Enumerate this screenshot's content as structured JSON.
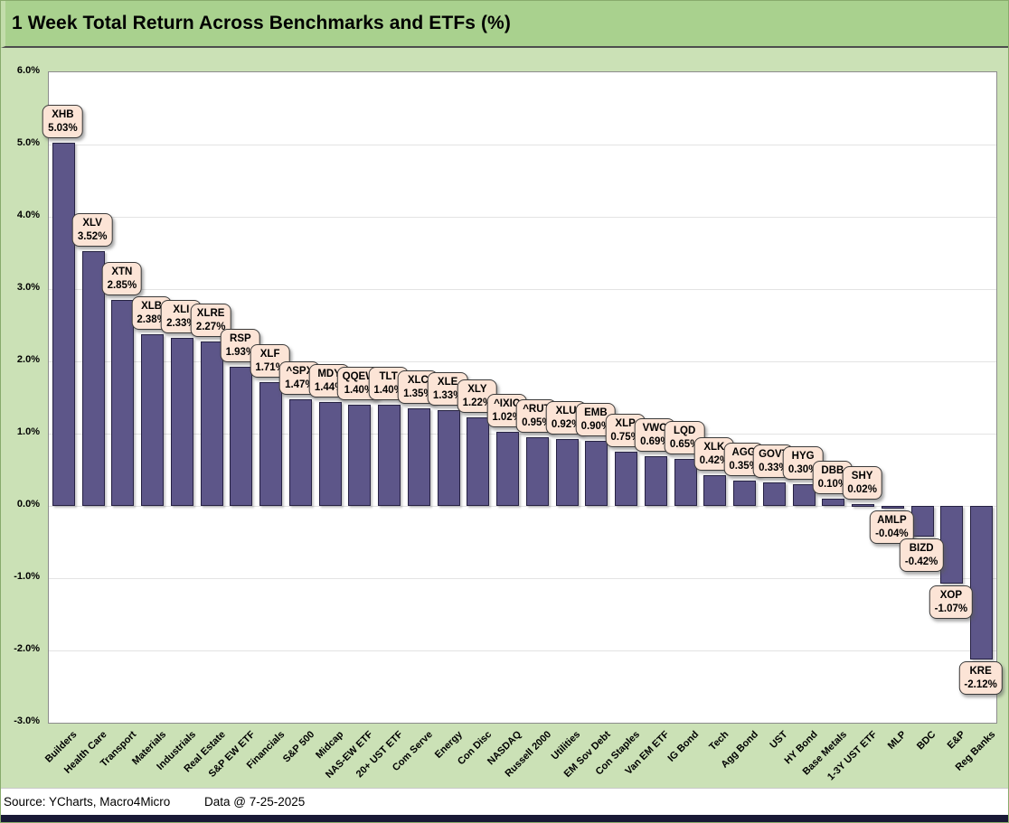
{
  "title": "1 Week Total Return Across Benchmarks and ETFs (%)",
  "source_row": {
    "source": "Source: YCharts, Macro4Micro",
    "data_date": "Data @ 7-25-2025"
  },
  "colors": {
    "title_bg": "#a9d18e",
    "chart_bg": "#cbe1b6",
    "plot_bg": "#ffffff",
    "gridline": "#e3e3e3",
    "plot_border": "#8c8c8c",
    "bar_fill": "#5d5689",
    "bar_border": "#262143",
    "label_box_fill": "#fce4d6",
    "label_box_border": "#3a3a3a",
    "footer_bar": "#191936"
  },
  "chart_data": {
    "type": "bar",
    "title": "1 Week Total Return Across Benchmarks and ETFs (%)",
    "xlabel": "",
    "ylabel": "",
    "ylim": [
      -3.0,
      6.0
    ],
    "ytick_step": 1.0,
    "ytick_labels": [
      "6.0%",
      "5.0%",
      "4.0%",
      "3.0%",
      "2.0%",
      "1.0%",
      "0.0%",
      "-1.0%",
      "-2.0%",
      "-3.0%"
    ],
    "grid": "horizontal",
    "legend_position": "none",
    "categories": [
      "Builders",
      "Health Care",
      "Transport",
      "Materials",
      "Industrials",
      "Real Estate",
      "S&P EW ETF",
      "Financials",
      "S&P 500",
      "Midcap",
      "NAS-EW ETF",
      "20+ UST ETF",
      "Com Serve",
      "Energy",
      "Con Disc",
      "NASDAQ",
      "Russell 2000",
      "Utilities",
      "EM Sov Debt",
      "Con Staples",
      "Van EM ETF",
      "IG Bond",
      "Tech",
      "Agg Bond",
      "UST",
      "HY Bond",
      "Base Metals",
      "1-3Y UST ETF",
      "MLP",
      "BDC",
      "E&P",
      "Reg Banks"
    ],
    "tickers": [
      "XHB",
      "XLV",
      "XTN",
      "XLB",
      "XLI",
      "XLRE",
      "RSP",
      "XLF",
      "^SPX",
      "MDY",
      "QQEW",
      "TLT",
      "XLC",
      "XLE",
      "XLY",
      "^IXIC",
      "^RUT",
      "XLU",
      "EMB",
      "XLP",
      "VWO",
      "LQD",
      "XLK",
      "AGG",
      "GOVT",
      "HYG",
      "DBB",
      "SHY",
      "AMLP",
      "BIZD",
      "XOP",
      "KRE"
    ],
    "series": [
      {
        "name": "1 Week Total Return (%)",
        "values": [
          5.03,
          3.52,
          2.85,
          2.38,
          2.33,
          2.27,
          1.93,
          1.71,
          1.47,
          1.44,
          1.4,
          1.4,
          1.35,
          1.33,
          1.22,
          1.02,
          0.95,
          0.92,
          0.9,
          0.75,
          0.69,
          0.65,
          0.42,
          0.35,
          0.33,
          0.3,
          0.1,
          0.02,
          -0.04,
          -0.42,
          -1.07,
          -2.12
        ]
      }
    ],
    "point_labels": [
      "5.03%",
      "3.52%",
      "2.85%",
      "2.38%",
      "2.33%",
      "2.27%",
      "1.93%",
      "1.71%",
      "1.47%",
      "1.44%",
      "1.40%",
      "1.40%",
      "1.35%",
      "1.33%",
      "1.22%",
      "1.02%",
      "0.95%",
      "0.92%",
      "0.90%",
      "0.75%",
      "0.69%",
      "0.65%",
      "0.42%",
      "0.35%",
      "0.33%",
      "0.30%",
      "0.10%",
      "0.02%",
      "-0.04%",
      "-0.42%",
      "-1.07%",
      "-2.12%"
    ]
  }
}
